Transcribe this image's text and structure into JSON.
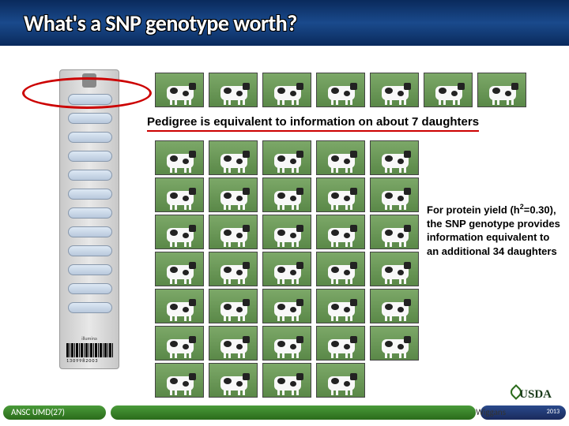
{
  "slide": {
    "title": "What's a SNP genotype worth?",
    "subtitle": "Pedigree is equivalent to information on about 7 daughters",
    "info_text": "For protein yield (h²=0.30), the SNP genotype provides information equivalent to an additional 34 daughters"
  },
  "chip": {
    "slot_count": 12,
    "slot_top_start": 30,
    "slot_spacing": 24,
    "label_bottom": "illumina",
    "barcode_number": "1309982003",
    "barcode_lines": 30
  },
  "cows": {
    "top_row_count": 7,
    "grid_rows": 7,
    "grid_cols": 5,
    "colors": {
      "pasture": "#5a8848",
      "body": "#f8f8f8",
      "spots": "#222222"
    }
  },
  "highlight": {
    "ellipse_color": "#cc0000",
    "underline_color": "#cc0000"
  },
  "footer": {
    "left_text": "ANSC UMD(27)",
    "right_text": "Wiggans",
    "logo_text": "USDA",
    "year": "2013",
    "colors": {
      "green": "#2a6b1a",
      "blue": "#1a2a5c"
    }
  }
}
